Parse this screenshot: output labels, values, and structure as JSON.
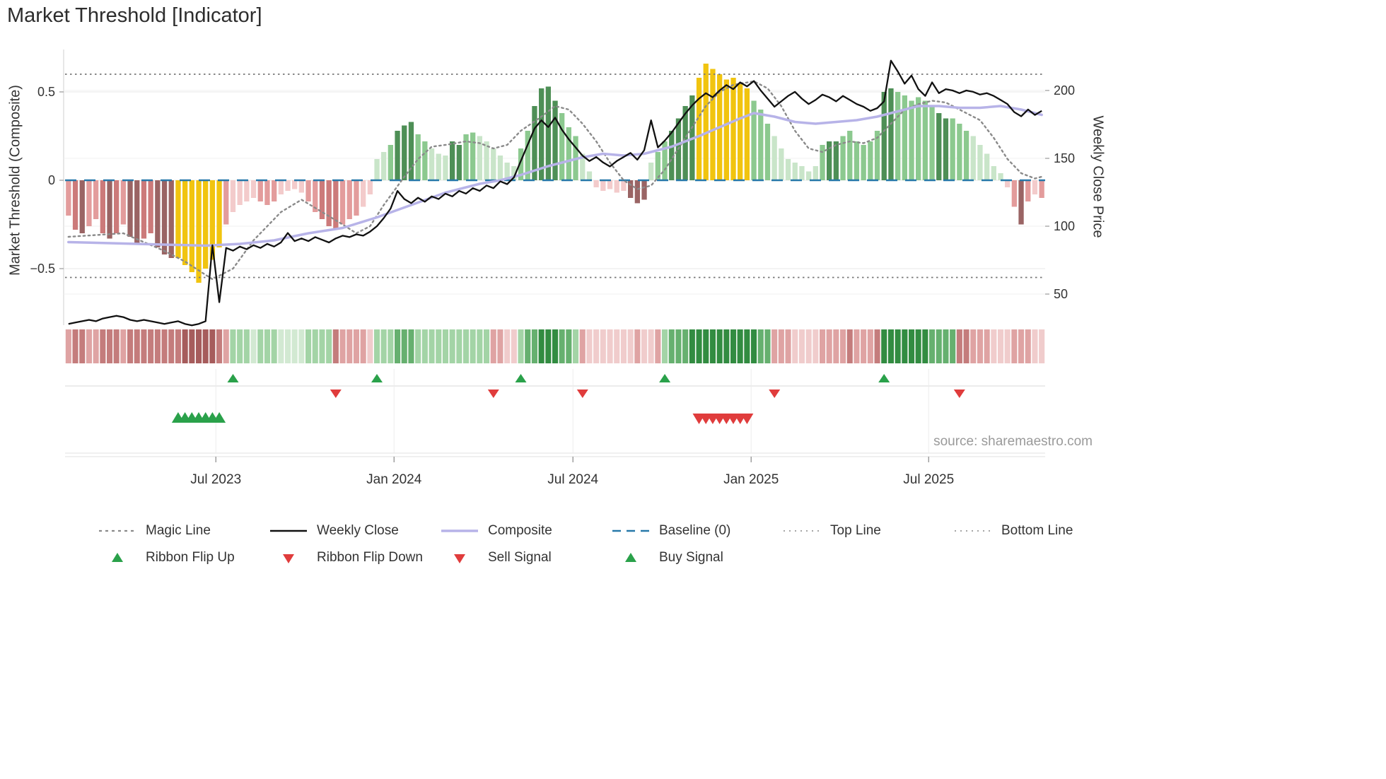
{
  "title": "Market Threshold [Indicator]",
  "source": "source: sharemaestro.com",
  "axes": {
    "left_label": "Market Threshold (Composite)",
    "right_label": "Weekly Close Price",
    "left_ticks": [
      {
        "value": 0.5,
        "label": "0.5"
      },
      {
        "value": 0,
        "label": "0"
      },
      {
        "value": -0.5,
        "label": "−0.5"
      }
    ],
    "right_ticks": [
      {
        "value": 200,
        "label": "200"
      },
      {
        "value": 150,
        "label": "150"
      },
      {
        "value": 100,
        "label": "100"
      },
      {
        "value": 50,
        "label": "50"
      }
    ],
    "x_ticks": [
      {
        "pos": 21.5,
        "label": "Jul 2023"
      },
      {
        "pos": 47.5,
        "label": "Jan 2024"
      },
      {
        "pos": 73.6,
        "label": "Jul 2024"
      },
      {
        "pos": 99.6,
        "label": "Jan 2025"
      },
      {
        "pos": 125.5,
        "label": "Jul 2025"
      }
    ]
  },
  "colors": {
    "bar_palette": {
      "p1": "#f3cbcb",
      "p2": "#e39c9c",
      "p3": "#cc7a7a",
      "m": "#9a6464",
      "y": "#f1c40f",
      "g1": "#c9e5c9",
      "g2": "#8cc98f",
      "g3": "#4e8f56"
    },
    "ribbon_red": [
      "#f0cccc",
      "#dfa3a3",
      "#c47c7c",
      "#a65c5c"
    ],
    "ribbon_green": [
      "#d2e9d2",
      "#a3d4a6",
      "#66b06f",
      "#328c41"
    ],
    "magic_line": "#8a8a8a",
    "weekly_close": "#111111",
    "composite": "#b7b3e8",
    "baseline": "#2778a9",
    "top_bottom": "#777777",
    "signal_green": "#2aa14a",
    "signal_red": "#e03c3c"
  },
  "legend": {
    "items": [
      {
        "label": "Magic Line",
        "type": "line",
        "dash": "4 5",
        "color": "#8a8a8a",
        "width": 2.2
      },
      {
        "label": "Weekly Close",
        "type": "line",
        "dash": "",
        "color": "#111111",
        "width": 2.6
      },
      {
        "label": "Composite",
        "type": "line",
        "dash": "",
        "color": "#b7b3e8",
        "width": 3.5
      },
      {
        "label": "Baseline (0)",
        "type": "line",
        "dash": "12 8",
        "color": "#2778a9",
        "width": 2.6
      },
      {
        "label": "Top Line",
        "type": "line",
        "dash": "2 6",
        "color": "#999999",
        "width": 1.8
      },
      {
        "label": "Bottom Line",
        "type": "line",
        "dash": "2 6",
        "color": "#999999",
        "width": 1.8
      },
      {
        "label": "Ribbon Flip Up",
        "type": "triangle-up",
        "color": "#2aa14a"
      },
      {
        "label": "Ribbon Flip Down",
        "type": "triangle-down",
        "color": "#e03c3c"
      },
      {
        "label": "Sell Signal",
        "type": "triangle-down",
        "color": "#e03c3c"
      },
      {
        "label": "Buy Signal",
        "type": "triangle-up",
        "color": "#2aa14a"
      }
    ]
  },
  "chart_data": {
    "type": "bar+line",
    "n_weeks": 143,
    "title": "Market Threshold [Indicator]",
    "left_axis_range": [
      -0.75,
      0.75
    ],
    "right_axis_range": [
      25,
      230
    ],
    "top_line": 0.6,
    "bottom_line": -0.55,
    "baseline": 0,
    "threshold_bars": {
      "values": [
        -0.2,
        -0.28,
        -0.3,
        -0.26,
        -0.22,
        -0.3,
        -0.33,
        -0.3,
        -0.25,
        -0.32,
        -0.36,
        -0.33,
        -0.3,
        -0.38,
        -0.42,
        -0.44,
        -0.44,
        -0.48,
        -0.52,
        -0.58,
        -0.5,
        -0.45,
        -0.38,
        -0.25,
        -0.18,
        -0.14,
        -0.12,
        -0.1,
        -0.12,
        -0.14,
        -0.12,
        -0.08,
        -0.06,
        -0.05,
        -0.07,
        -0.12,
        -0.18,
        -0.22,
        -0.26,
        -0.28,
        -0.25,
        -0.22,
        -0.2,
        -0.15,
        -0.08,
        0.12,
        0.16,
        0.2,
        0.28,
        0.31,
        0.33,
        0.26,
        0.22,
        0.18,
        0.15,
        0.14,
        0.22,
        0.2,
        0.26,
        0.27,
        0.25,
        0.22,
        0.18,
        0.14,
        0.1,
        0.08,
        0.18,
        0.28,
        0.42,
        0.52,
        0.53,
        0.45,
        0.38,
        0.3,
        0.25,
        0.15,
        0.05,
        -0.04,
        -0.06,
        -0.05,
        -0.07,
        -0.06,
        -0.1,
        -0.13,
        -0.11,
        0.1,
        0.16,
        0.22,
        0.28,
        0.35,
        0.42,
        0.48,
        0.58,
        0.66,
        0.63,
        0.6,
        0.57,
        0.58,
        0.55,
        0.52,
        0.45,
        0.4,
        0.32,
        0.25,
        0.18,
        0.12,
        0.1,
        0.08,
        0.05,
        0.08,
        0.2,
        0.22,
        0.22,
        0.25,
        0.28,
        0.22,
        0.2,
        0.22,
        0.28,
        0.5,
        0.52,
        0.5,
        0.48,
        0.45,
        0.47,
        0.45,
        0.42,
        0.38,
        0.35,
        0.35,
        0.32,
        0.28,
        0.25,
        0.2,
        0.15,
        0.08,
        0.04,
        -0.04,
        -0.15,
        -0.25,
        -0.12,
        -0.08,
        -0.1
      ],
      "colors": [
        "p2",
        "p3",
        "m",
        "p2",
        "p2",
        "p3",
        "m",
        "p3",
        "p2",
        "m",
        "m",
        "p3",
        "p3",
        "m",
        "m",
        "m",
        "y",
        "y",
        "y",
        "y",
        "y",
        "y",
        "y",
        "p2",
        "p1",
        "p1",
        "p1",
        "p1",
        "p2",
        "p2",
        "p2",
        "p1",
        "p1",
        "p1",
        "p1",
        "p2",
        "p2",
        "p3",
        "p3",
        "p3",
        "p2",
        "p2",
        "p2",
        "p1",
        "p1",
        "g1",
        "g1",
        "g2",
        "g3",
        "g3",
        "g3",
        "g2",
        "g2",
        "g1",
        "g1",
        "g1",
        "g3",
        "g3",
        "g2",
        "g2",
        "g1",
        "g1",
        "g1",
        "g1",
        "g1",
        "g1",
        "g2",
        "g2",
        "g3",
        "g3",
        "g3",
        "g3",
        "g2",
        "g2",
        "g2",
        "g1",
        "g1",
        "p1",
        "p1",
        "p1",
        "p1",
        "p1",
        "m",
        "m",
        "m",
        "g1",
        "g2",
        "g2",
        "g3",
        "g3",
        "g3",
        "g3",
        "y",
        "y",
        "y",
        "y",
        "y",
        "y",
        "y",
        "y",
        "g2",
        "g2",
        "g2",
        "g1",
        "g1",
        "g1",
        "g1",
        "g1",
        "g1",
        "g1",
        "g2",
        "g3",
        "g3",
        "g2",
        "g2",
        "g2",
        "g2",
        "g2",
        "g2",
        "g3",
        "g3",
        "g2",
        "g2",
        "g2",
        "g2",
        "g2",
        "g2",
        "g3",
        "g3",
        "g2",
        "g2",
        "g2",
        "g1",
        "g1",
        "g1",
        "g1",
        "g1",
        "p1",
        "p2",
        "m",
        "p2",
        "p1",
        "p2"
      ]
    },
    "weekly_close": [
      28,
      29,
      30,
      31,
      30,
      32,
      33,
      34,
      33,
      31,
      30,
      31,
      30,
      29,
      28,
      29,
      30,
      28,
      27,
      28,
      30,
      86,
      44,
      84,
      82,
      85,
      83,
      86,
      84,
      87,
      85,
      88,
      95,
      89,
      91,
      89,
      92,
      90,
      88,
      91,
      93,
      92,
      94,
      93,
      96,
      100,
      106,
      113,
      126,
      120,
      117,
      121,
      118,
      122,
      120,
      124,
      122,
      126,
      124,
      128,
      126,
      130,
      128,
      133,
      131,
      136,
      148,
      160,
      172,
      178,
      173,
      180,
      171,
      164,
      158,
      152,
      148,
      151,
      147,
      144,
      148,
      151,
      154,
      149,
      156,
      178,
      158,
      163,
      169,
      176,
      183,
      189,
      194,
      198,
      195,
      200,
      204,
      201,
      206,
      203,
      207,
      200,
      194,
      188,
      192,
      196,
      199,
      194,
      190,
      193,
      197,
      195,
      192,
      196,
      193,
      190,
      188,
      185,
      187,
      192,
      222,
      214,
      205,
      211,
      201,
      196,
      206,
      198,
      201,
      200,
      198,
      200,
      199,
      197,
      198,
      196,
      193,
      190,
      184,
      181,
      186,
      182,
      185
    ],
    "composite_anchors": [
      [
        0,
        -0.35
      ],
      [
        10,
        -0.36
      ],
      [
        20,
        -0.37
      ],
      [
        25,
        -0.36
      ],
      [
        30,
        -0.34
      ],
      [
        35,
        -0.3
      ],
      [
        40,
        -0.27
      ],
      [
        45,
        -0.21
      ],
      [
        50,
        -0.14
      ],
      [
        55,
        -0.07
      ],
      [
        60,
        -0.02
      ],
      [
        63,
        0.0
      ],
      [
        66,
        0.03
      ],
      [
        70,
        0.08
      ],
      [
        75,
        0.13
      ],
      [
        78,
        0.15
      ],
      [
        81,
        0.14
      ],
      [
        84,
        0.15
      ],
      [
        88,
        0.19
      ],
      [
        92,
        0.25
      ],
      [
        95,
        0.3
      ],
      [
        98,
        0.35
      ],
      [
        100,
        0.38
      ],
      [
        103,
        0.36
      ],
      [
        106,
        0.33
      ],
      [
        109,
        0.32
      ],
      [
        112,
        0.33
      ],
      [
        115,
        0.34
      ],
      [
        118,
        0.36
      ],
      [
        121,
        0.39
      ],
      [
        124,
        0.42
      ],
      [
        127,
        0.42
      ],
      [
        130,
        0.41
      ],
      [
        133,
        0.41
      ],
      [
        136,
        0.42
      ],
      [
        139,
        0.4
      ],
      [
        142,
        0.37
      ]
    ],
    "magic_line_anchors": [
      [
        0,
        -0.32
      ],
      [
        8,
        -0.3
      ],
      [
        14,
        -0.4
      ],
      [
        17,
        -0.46
      ],
      [
        21,
        -0.56
      ],
      [
        24,
        -0.5
      ],
      [
        27,
        -0.34
      ],
      [
        31,
        -0.18
      ],
      [
        34,
        -0.11
      ],
      [
        37,
        -0.18
      ],
      [
        40,
        -0.25
      ],
      [
        42,
        -0.3
      ],
      [
        44,
        -0.26
      ],
      [
        46,
        -0.14
      ],
      [
        49,
        0.02
      ],
      [
        51,
        0.12
      ],
      [
        53,
        0.19
      ],
      [
        55,
        0.2
      ],
      [
        58,
        0.22
      ],
      [
        60,
        0.21
      ],
      [
        62,
        0.18
      ],
      [
        64,
        0.2
      ],
      [
        66,
        0.28
      ],
      [
        69,
        0.36
      ],
      [
        71,
        0.42
      ],
      [
        73,
        0.4
      ],
      [
        75,
        0.32
      ],
      [
        77,
        0.22
      ],
      [
        79,
        0.1
      ],
      [
        81,
        0.0
      ],
      [
        83,
        -0.05
      ],
      [
        85,
        -0.03
      ],
      [
        87,
        0.06
      ],
      [
        89,
        0.18
      ],
      [
        91,
        0.3
      ],
      [
        93,
        0.42
      ],
      [
        95,
        0.5
      ],
      [
        97,
        0.54
      ],
      [
        100,
        0.56
      ],
      [
        102,
        0.52
      ],
      [
        104,
        0.42
      ],
      [
        106,
        0.28
      ],
      [
        108,
        0.18
      ],
      [
        110,
        0.16
      ],
      [
        112,
        0.2
      ],
      [
        114,
        0.22
      ],
      [
        116,
        0.21
      ],
      [
        118,
        0.24
      ],
      [
        120,
        0.32
      ],
      [
        122,
        0.4
      ],
      [
        124,
        0.43
      ],
      [
        126,
        0.45
      ],
      [
        128,
        0.44
      ],
      [
        130,
        0.4
      ],
      [
        133,
        0.34
      ],
      [
        135,
        0.24
      ],
      [
        137,
        0.12
      ],
      [
        139,
        0.04
      ],
      [
        141,
        0.01
      ],
      [
        142,
        0.02
      ]
    ],
    "ribbon_flips": {
      "up_indices": [
        24,
        45,
        66,
        87,
        119
      ],
      "down_indices": [
        39,
        62,
        75,
        103,
        130
      ]
    },
    "buy_signal_indices": [
      16,
      17,
      18,
      19,
      20,
      21,
      22
    ],
    "sell_signal_indices": [
      92,
      93,
      94,
      95,
      96,
      97,
      98,
      99
    ]
  }
}
